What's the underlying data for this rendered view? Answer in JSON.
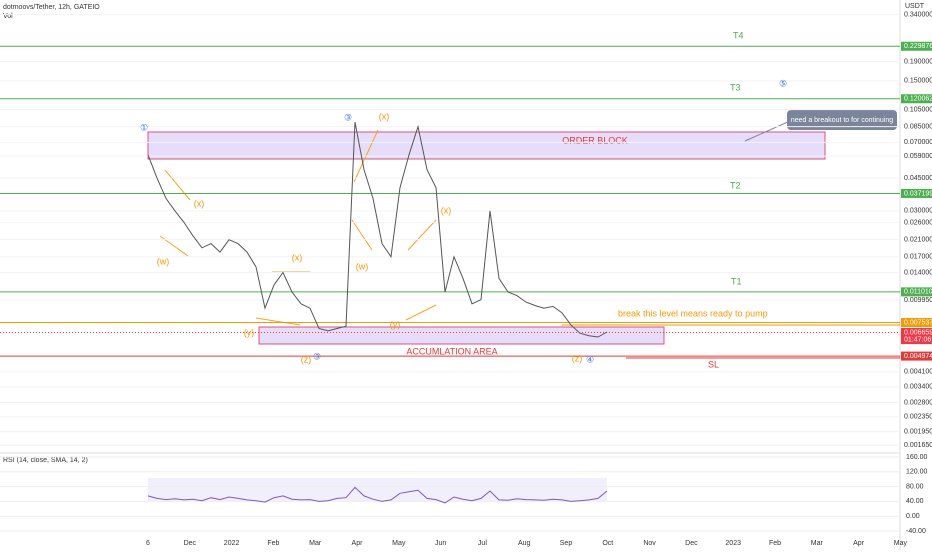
{
  "header": {
    "symbol": "dotmoovs/Tether, 12h, GATEIO",
    "volume": "Vol",
    "currency": "USDT"
  },
  "chart_data": {
    "type": "line",
    "log_scale": true,
    "color": "#555555",
    "x_labels": [
      "6",
      "Dec",
      "2022",
      "Feb",
      "Mar",
      "Apr",
      "May",
      "Jun",
      "Jul",
      "Aug",
      "Sep",
      "Oct",
      "Nov",
      "Dec",
      "2023",
      "Feb",
      "Mar",
      "Apr",
      "May"
    ],
    "values": [
      0.06,
      0.045,
      0.035,
      0.03,
      0.026,
      0.022,
      0.019,
      0.02,
      0.018,
      0.021,
      0.02,
      0.018,
      0.015,
      0.009,
      0.012,
      0.014,
      0.011,
      0.0095,
      0.009,
      0.007,
      0.0068,
      0.007,
      0.0072,
      0.09,
      0.05,
      0.035,
      0.02,
      0.017,
      0.04,
      0.06,
      0.085,
      0.05,
      0.04,
      0.011,
      0.017,
      0.013,
      0.0095,
      0.01,
      0.03,
      0.013,
      0.011,
      0.0105,
      0.0097,
      0.0093,
      0.009,
      0.0092,
      0.0085,
      0.0073,
      0.0066,
      0.0064,
      0.0063,
      0.0067
    ],
    "ylim": [
      0.0015,
      0.36
    ],
    "yticks": [
      {
        "value": 0.34,
        "label": "0.340000"
      },
      {
        "value": 0.19,
        "label": "0.190000"
      },
      {
        "value": 0.15,
        "label": "0.150000"
      },
      {
        "value": 0.105,
        "label": "0.105000"
      },
      {
        "value": 0.085,
        "label": "0.085000"
      },
      {
        "value": 0.07,
        "label": "0.070000"
      },
      {
        "value": 0.059,
        "label": "0.059000"
      },
      {
        "value": 0.045,
        "label": "0.045000"
      },
      {
        "value": 0.03,
        "label": "0.030000"
      },
      {
        "value": 0.026,
        "label": "0.026000"
      },
      {
        "value": 0.021,
        "label": "0.021000"
      },
      {
        "value": 0.017,
        "label": "0.017000"
      },
      {
        "value": 0.014,
        "label": "0.014000"
      },
      {
        "value": 0.00995,
        "label": "0.009950"
      },
      {
        "value": 0.0041,
        "label": "0.004100"
      },
      {
        "value": 0.0034,
        "label": "0.003400"
      },
      {
        "value": 0.0028,
        "label": "0.002800"
      },
      {
        "value": 0.00235,
        "label": "0.002350"
      },
      {
        "value": 0.00195,
        "label": "0.001950"
      },
      {
        "value": 0.00165,
        "label": "0.001650"
      }
    ],
    "levels": [
      {
        "value": 0.229876,
        "label": "0.229876",
        "color": "#4caf50"
      },
      {
        "value": 0.120062,
        "label": "0.120062",
        "color": "#4caf50"
      },
      {
        "value": 0.037199,
        "label": "0.037199",
        "color": "#4caf50"
      },
      {
        "value": 0.01101,
        "label": "0.011010",
        "color": "#4caf50"
      },
      {
        "value": 0.007537,
        "label": "0.007537",
        "color": "#f59b00"
      },
      {
        "value": 0.004974,
        "label": "0.004974",
        "color": "#e53935"
      }
    ],
    "last_price": {
      "value": 0.006659,
      "label": "0.006659",
      "countdown": "01:47:06",
      "color": "#f23645"
    }
  },
  "rsi": {
    "label": "RSI (14, close, SMA, 14, 2)",
    "ylim": [
      -40,
      160
    ],
    "yticks": [
      {
        "value": 160,
        "label": "160.00"
      },
      {
        "value": 120,
        "label": "120.00"
      },
      {
        "value": 80,
        "label": "80.00"
      },
      {
        "value": 40,
        "label": "40.00"
      },
      {
        "value": 0,
        "label": "0.00"
      },
      {
        "value": -40,
        "label": "-40.00"
      }
    ],
    "values": [
      55,
      48,
      45,
      47,
      44,
      46,
      42,
      50,
      45,
      52,
      48,
      44,
      42,
      38,
      50,
      55,
      46,
      44,
      45,
      40,
      42,
      48,
      50,
      78,
      55,
      46,
      40,
      44,
      62,
      66,
      70,
      48,
      45,
      36,
      52,
      46,
      42,
      48,
      68,
      44,
      43,
      47,
      45,
      44,
      43,
      46,
      44,
      40,
      42,
      44,
      48,
      68
    ]
  },
  "annotations": {
    "targets": [
      "T4",
      "T3",
      "T2",
      "T1",
      "SL"
    ],
    "order_block": "ORDER BLOCK",
    "accumulation": "ACCUMLATION  AREA",
    "breakout_note": "break this level means ready to pump",
    "callout": "need a breakout to for continuing",
    "waves": [
      "①",
      "(w)",
      "(x)",
      "(x)",
      "(y)",
      "(z)",
      "③",
      "③",
      "(x)",
      "(w)",
      "(x)",
      "(y)",
      "(z)",
      "④",
      "⑤"
    ]
  }
}
